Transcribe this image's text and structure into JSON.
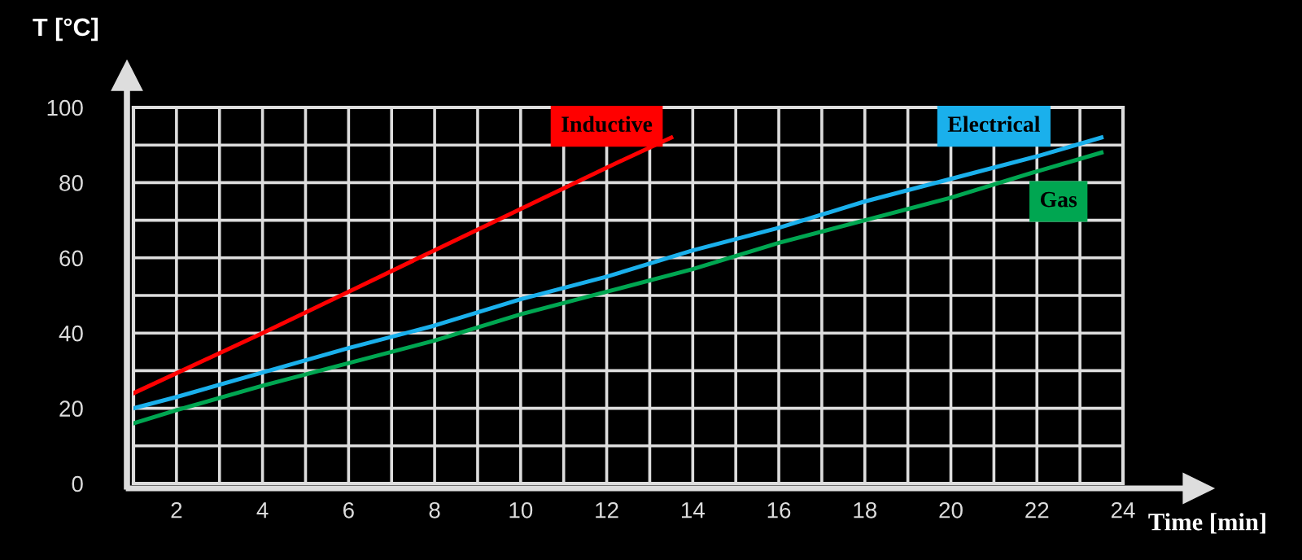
{
  "chart_data": {
    "type": "line",
    "xlabel": "Time [min]",
    "ylabel": "T [°C]",
    "xlim": [
      1,
      24
    ],
    "ylim": [
      0,
      100
    ],
    "xticks": [
      2,
      {
        "value": 3,
        "label": null
      },
      4,
      {
        "value": 5,
        "label": null
      },
      6,
      {
        "value": 7,
        "label": null
      },
      8,
      {
        "value": 9,
        "label": null
      },
      10,
      {
        "value": 11,
        "label": null
      },
      12,
      {
        "value": 13,
        "label": null
      },
      14,
      {
        "value": 15,
        "label": null
      },
      16,
      {
        "value": 17,
        "label": null
      },
      18,
      {
        "value": 19,
        "label": null
      },
      20,
      {
        "value": 21,
        "label": null
      },
      22,
      {
        "value": 23,
        "label": null
      },
      24
    ],
    "yticks": [
      0,
      {
        "value": 10,
        "label": null
      },
      20,
      {
        "value": 30,
        "label": null
      },
      40,
      {
        "value": 50,
        "label": null
      },
      60,
      {
        "value": 70,
        "label": null
      },
      80,
      {
        "value": 90,
        "label": null
      },
      100
    ],
    "grid": true,
    "legend": false,
    "marker": "none",
    "line_style": "solid",
    "series": [
      {
        "name": "Inductive",
        "color": "#ff0000",
        "x": [
          1,
          4,
          6,
          8,
          10,
          12,
          13.5
        ],
        "values": [
          24,
          40,
          51,
          62,
          73,
          84,
          92
        ]
      },
      {
        "name": "Electrical",
        "color": "#1ab0ec",
        "x": [
          1,
          2,
          4,
          6,
          8,
          10,
          12,
          14,
          16,
          18,
          20,
          22,
          23.5
        ],
        "values": [
          20,
          23,
          29.5,
          36,
          42,
          49,
          55,
          62,
          68,
          75,
          81,
          87,
          92
        ]
      },
      {
        "name": "Gas",
        "color": "#00a651",
        "x": [
          1,
          2,
          4,
          6,
          8,
          10,
          12,
          14,
          16,
          18,
          20,
          22,
          23.5
        ],
        "values": [
          16,
          19.5,
          26,
          32,
          38,
          45,
          51,
          57,
          64,
          70,
          76,
          83,
          88
        ]
      }
    ]
  }
}
